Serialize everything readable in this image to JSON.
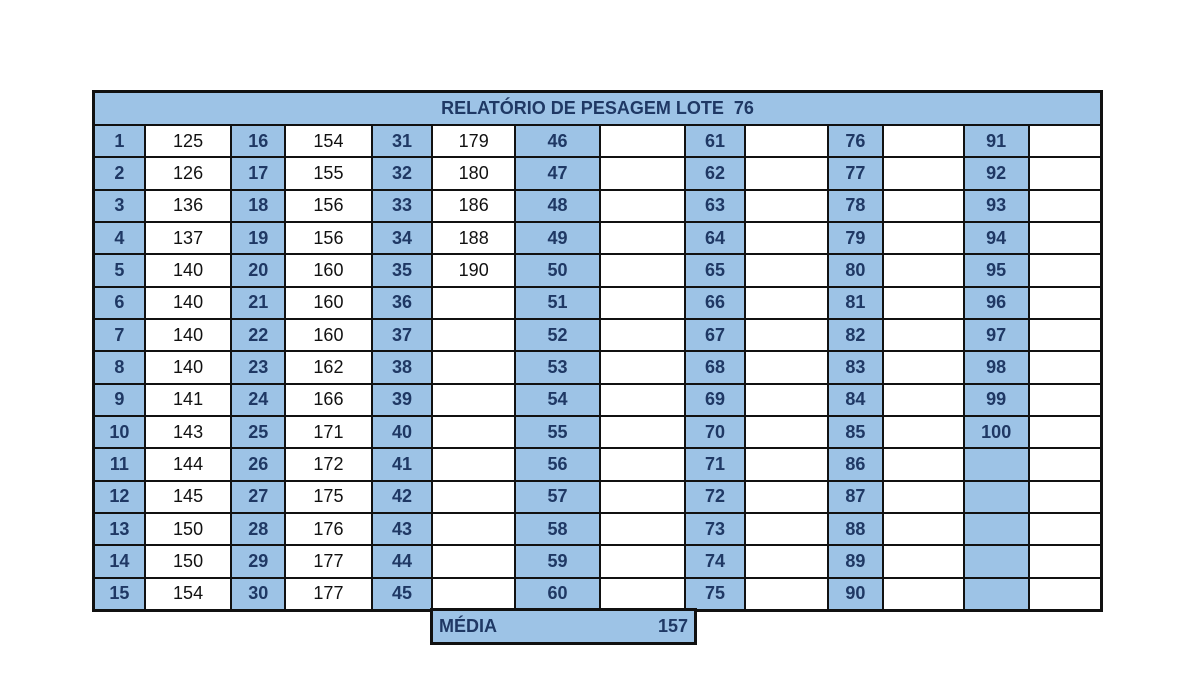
{
  "header": {
    "title": "RELATÓRIO DE PESAGEM LOTE  76"
  },
  "table": {
    "groups": [
      {
        "numbers": [
          1,
          2,
          3,
          4,
          5,
          6,
          7,
          8,
          9,
          10,
          11,
          12,
          13,
          14,
          15
        ],
        "weights": [
          125,
          126,
          136,
          137,
          140,
          140,
          140,
          140,
          141,
          143,
          144,
          145,
          150,
          150,
          154
        ]
      },
      {
        "numbers": [
          16,
          17,
          18,
          19,
          20,
          21,
          22,
          23,
          24,
          25,
          26,
          27,
          28,
          29,
          30
        ],
        "weights": [
          154,
          155,
          156,
          156,
          160,
          160,
          160,
          162,
          166,
          171,
          172,
          175,
          176,
          177,
          177
        ]
      },
      {
        "numbers": [
          31,
          32,
          33,
          34,
          35,
          36,
          37,
          38,
          39,
          40,
          41,
          42,
          43,
          44,
          45
        ],
        "weights": [
          179,
          180,
          186,
          188,
          190
        ]
      },
      {
        "numbers": [
          46,
          47,
          48,
          49,
          50,
          51,
          52,
          53,
          54,
          55,
          56,
          57,
          58,
          59,
          60
        ]
      },
      {
        "numbers": [
          61,
          62,
          63,
          64,
          65,
          66,
          67,
          68,
          69,
          70,
          71,
          72,
          73,
          74,
          75
        ]
      },
      {
        "numbers": [
          76,
          77,
          78,
          79,
          80,
          81,
          82,
          83,
          84,
          85,
          86,
          87,
          88,
          89,
          90
        ]
      },
      {
        "numbers": [
          91,
          92,
          93,
          94,
          95,
          96,
          97,
          98,
          99,
          100
        ]
      }
    ]
  },
  "footer": {
    "label": "MÉDIA",
    "value": 157
  }
}
